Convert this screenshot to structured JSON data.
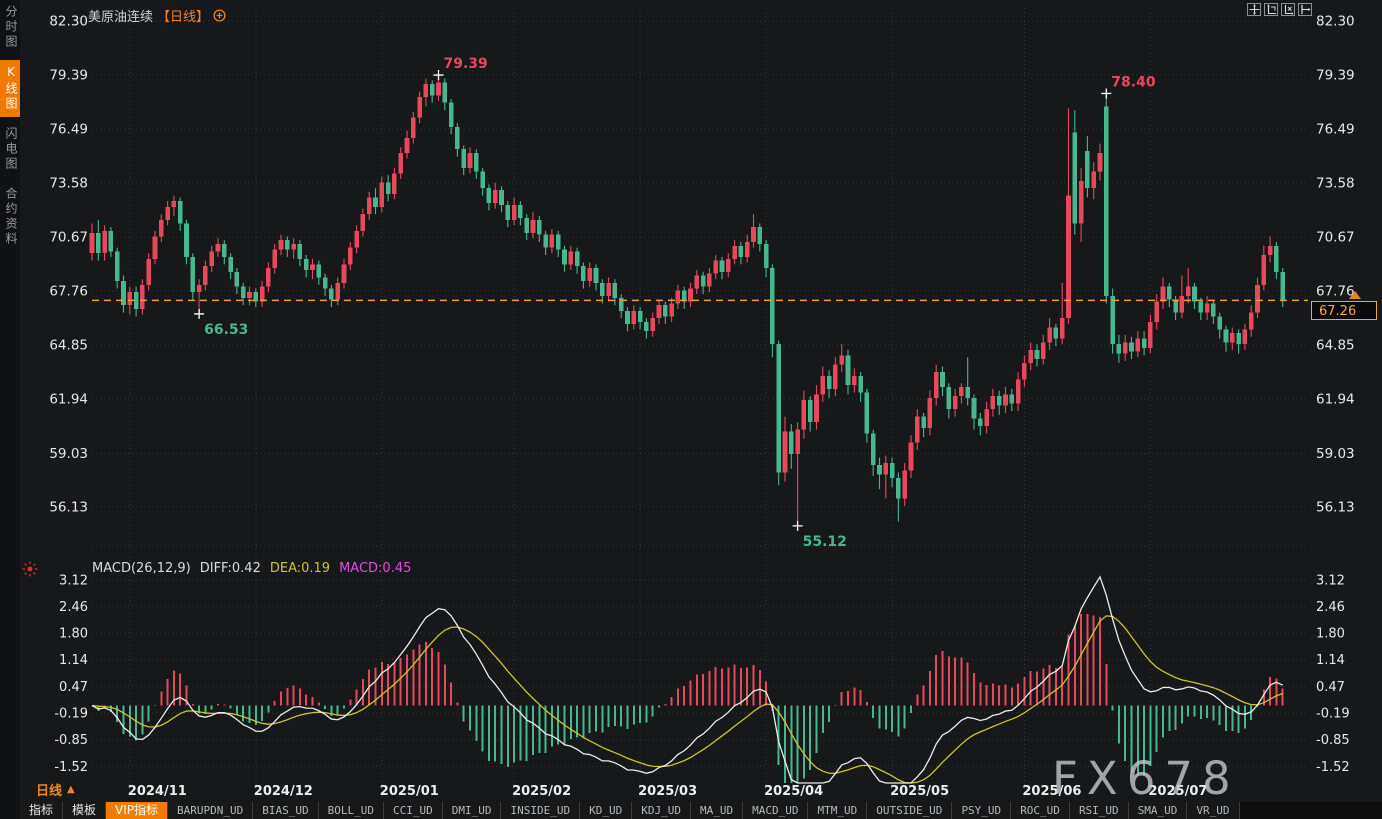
{
  "window": {
    "instrument": "美原油连续",
    "period_tag": "【日线】",
    "period_selector": "日线",
    "watermark": "FX678"
  },
  "sidebar": {
    "items": [
      {
        "label": "分时图",
        "active": false
      },
      {
        "label": "K线图",
        "active": true
      },
      {
        "label": "闪电图",
        "active": false
      },
      {
        "label": "合约资料",
        "active": false
      }
    ]
  },
  "toolbar": {
    "buttons": [
      "pan-move",
      "y-axis-scale",
      "x-axis-scale",
      "shift-right"
    ]
  },
  "macd_panel": {
    "title": "MACD(26,12,9)",
    "diff_text": "DIFF:0.42",
    "dea_text": "DEA:0.19",
    "macd_text": "MACD:0.45"
  },
  "current_price": "67.26",
  "bottom_tabs": [
    {
      "label": "指标",
      "style": "cn"
    },
    {
      "label": "模板",
      "style": "cn"
    },
    {
      "label": "VIP指标",
      "style": "vip"
    },
    {
      "label": "BARUPDN_UD",
      "style": "ud"
    },
    {
      "label": "BIAS_UD",
      "style": "ud"
    },
    {
      "label": "BOLL_UD",
      "style": "ud"
    },
    {
      "label": "CCI_UD",
      "style": "ud"
    },
    {
      "label": "DMI_UD",
      "style": "ud"
    },
    {
      "label": "INSIDE_UD",
      "style": "ud"
    },
    {
      "label": "KD_UD",
      "style": "ud"
    },
    {
      "label": "KDJ_UD",
      "style": "ud"
    },
    {
      "label": "MA_UD",
      "style": "ud"
    },
    {
      "label": "MACD_UD",
      "style": "ud"
    },
    {
      "label": "MTM_UD",
      "style": "ud"
    },
    {
      "label": "OUTSIDE_UD",
      "style": "ud"
    },
    {
      "label": "PSY_UD",
      "style": "ud"
    },
    {
      "label": "ROC_UD",
      "style": "ud"
    },
    {
      "label": "RSI_UD",
      "style": "ud"
    },
    {
      "label": "SMA_UD",
      "style": "ud"
    },
    {
      "label": "VR_UD",
      "style": "ud"
    }
  ],
  "chart_data": {
    "type": "candlestick",
    "title": "美原油连续 日线 (US crude oil continuous, daily)",
    "price_axis": [
      82.3,
      79.39,
      76.49,
      73.58,
      70.67,
      67.76,
      64.85,
      61.94,
      59.03,
      56.13
    ],
    "macd_axis": [
      3.12,
      2.46,
      1.8,
      1.14,
      0.47,
      -0.19,
      -0.85,
      -1.52
    ],
    "months": [
      {
        "index": 6,
        "label": "2024/11"
      },
      {
        "index": 26,
        "label": "2024/12"
      },
      {
        "index": 46,
        "label": "2025/01"
      },
      {
        "index": 67,
        "label": "2025/02"
      },
      {
        "index": 87,
        "label": "2025/03"
      },
      {
        "index": 107,
        "label": "2025/04"
      },
      {
        "index": 127,
        "label": "2025/05"
      },
      {
        "index": 148,
        "label": "2025/06"
      },
      {
        "index": 168,
        "label": "2025/07"
      }
    ],
    "markers": [
      {
        "label": "79.39",
        "index": 55,
        "price": 79.39,
        "kind": "high"
      },
      {
        "label": "66.53",
        "index": 17,
        "price": 66.53,
        "kind": "low"
      },
      {
        "label": "55.12",
        "index": 112,
        "price": 55.12,
        "kind": "low"
      },
      {
        "label": "78.40",
        "index": 161,
        "price": 78.4,
        "kind": "high"
      }
    ],
    "last_price": 67.26,
    "indicator": {
      "name": "MACD",
      "params": [
        26,
        12,
        9
      ],
      "diff": 0.42,
      "dea": 0.19,
      "macd": 0.45
    },
    "colors": {
      "up": "#e8485c",
      "down": "#45b88e",
      "accent_orange": "#f58220",
      "dea_yellow": "#cfc22f",
      "macd_magenta": "#e04fe0",
      "grid": "#34373b",
      "text": "#e6e8ea",
      "price_line": "#f29b38",
      "cross": "#ffffff"
    },
    "candles": [
      [
        69.8,
        71.4,
        69.4,
        70.9
      ],
      [
        70.9,
        71.6,
        69.4,
        69.8
      ],
      [
        69.8,
        71.3,
        69.4,
        71.0
      ],
      [
        71.0,
        71.2,
        69.6,
        69.9
      ],
      [
        69.9,
        70.1,
        67.9,
        68.3
      ],
      [
        68.3,
        68.6,
        66.6,
        67.0
      ],
      [
        67.0,
        68.0,
        66.5,
        67.7
      ],
      [
        67.7,
        68.0,
        66.4,
        66.8
      ],
      [
        66.8,
        68.4,
        66.5,
        68.1
      ],
      [
        68.1,
        69.8,
        67.8,
        69.5
      ],
      [
        69.5,
        71.0,
        69.2,
        70.7
      ],
      [
        70.7,
        71.9,
        70.4,
        71.6
      ],
      [
        71.6,
        72.6,
        71.3,
        72.3
      ],
      [
        72.3,
        72.9,
        71.8,
        72.6
      ],
      [
        72.6,
        72.8,
        71.0,
        71.4
      ],
      [
        71.4,
        71.6,
        69.2,
        69.6
      ],
      [
        69.6,
        69.8,
        67.3,
        67.7
      ],
      [
        67.7,
        68.4,
        66.53,
        68.1
      ],
      [
        68.1,
        69.4,
        67.8,
        69.1
      ],
      [
        69.1,
        70.2,
        68.8,
        69.9
      ],
      [
        69.9,
        70.6,
        69.6,
        70.3
      ],
      [
        70.3,
        70.5,
        69.2,
        69.6
      ],
      [
        69.6,
        69.8,
        68.4,
        68.8
      ],
      [
        68.8,
        69.0,
        67.6,
        68.0
      ],
      [
        68.0,
        68.2,
        67.0,
        67.4
      ],
      [
        67.4,
        68.0,
        67.0,
        67.7
      ],
      [
        67.7,
        67.9,
        66.9,
        67.2
      ],
      [
        67.2,
        68.3,
        66.9,
        68.0
      ],
      [
        68.0,
        69.3,
        67.7,
        69.0
      ],
      [
        69.0,
        70.3,
        68.7,
        70.0
      ],
      [
        70.0,
        70.8,
        69.7,
        70.5
      ],
      [
        70.5,
        70.7,
        69.6,
        70.0
      ],
      [
        70.0,
        70.6,
        69.5,
        70.3
      ],
      [
        70.3,
        70.5,
        69.1,
        69.5
      ],
      [
        69.5,
        69.7,
        68.5,
        68.9
      ],
      [
        68.9,
        69.5,
        68.4,
        69.2
      ],
      [
        69.2,
        69.4,
        68.1,
        68.5
      ],
      [
        68.5,
        68.7,
        67.5,
        67.9
      ],
      [
        67.9,
        68.1,
        66.9,
        67.3
      ],
      [
        67.3,
        68.5,
        67.0,
        68.2
      ],
      [
        68.2,
        69.5,
        67.9,
        69.2
      ],
      [
        69.2,
        70.4,
        68.9,
        70.1
      ],
      [
        70.1,
        71.3,
        69.8,
        71.0
      ],
      [
        71.0,
        72.2,
        70.7,
        71.9
      ],
      [
        71.9,
        73.1,
        71.6,
        72.8
      ],
      [
        72.8,
        73.3,
        71.9,
        72.3
      ],
      [
        72.3,
        73.9,
        72.0,
        73.6
      ],
      [
        73.6,
        74.0,
        72.6,
        73.0
      ],
      [
        73.0,
        74.4,
        72.7,
        74.1
      ],
      [
        74.1,
        75.5,
        73.8,
        75.2
      ],
      [
        75.2,
        76.4,
        74.9,
        76.0
      ],
      [
        76.0,
        77.4,
        75.7,
        77.1
      ],
      [
        77.1,
        78.5,
        76.8,
        78.2
      ],
      [
        78.2,
        79.2,
        77.7,
        78.9
      ],
      [
        78.9,
        79.1,
        77.9,
        78.3
      ],
      [
        78.3,
        79.39,
        78.0,
        79.0
      ],
      [
        79.0,
        79.2,
        77.5,
        77.9
      ],
      [
        77.9,
        78.1,
        76.2,
        76.6
      ],
      [
        76.6,
        76.8,
        75.0,
        75.4
      ],
      [
        75.4,
        75.6,
        74.0,
        74.4
      ],
      [
        74.4,
        75.5,
        74.1,
        75.2
      ],
      [
        75.2,
        75.4,
        73.8,
        74.2
      ],
      [
        74.2,
        74.4,
        72.9,
        73.3
      ],
      [
        73.3,
        73.5,
        72.1,
        72.5
      ],
      [
        72.5,
        73.6,
        72.2,
        73.2
      ],
      [
        73.2,
        73.4,
        72.0,
        72.4
      ],
      [
        72.4,
        72.6,
        71.2,
        71.6
      ],
      [
        71.6,
        72.8,
        71.3,
        72.4
      ],
      [
        72.4,
        72.6,
        71.3,
        71.7
      ],
      [
        71.7,
        71.9,
        70.5,
        70.9
      ],
      [
        70.9,
        72.0,
        70.6,
        71.6
      ],
      [
        71.6,
        71.8,
        70.4,
        70.8
      ],
      [
        70.8,
        71.0,
        69.7,
        70.1
      ],
      [
        70.1,
        71.1,
        69.8,
        70.8
      ],
      [
        70.8,
        71.0,
        69.6,
        70.0
      ],
      [
        70.0,
        70.2,
        68.8,
        69.2
      ],
      [
        69.2,
        70.2,
        68.9,
        69.9
      ],
      [
        69.9,
        70.1,
        68.7,
        69.1
      ],
      [
        69.1,
        69.3,
        67.9,
        68.3
      ],
      [
        68.3,
        69.3,
        68.0,
        69.0
      ],
      [
        69.0,
        69.2,
        67.8,
        68.2
      ],
      [
        68.2,
        68.4,
        67.1,
        67.5
      ],
      [
        67.5,
        68.5,
        67.2,
        68.2
      ],
      [
        68.2,
        68.4,
        67.0,
        67.4
      ],
      [
        67.4,
        67.6,
        66.3,
        66.7
      ],
      [
        66.7,
        66.9,
        65.6,
        66.0
      ],
      [
        66.0,
        67.0,
        65.7,
        66.7
      ],
      [
        66.7,
        66.9,
        65.7,
        66.1
      ],
      [
        66.1,
        66.3,
        65.2,
        65.6
      ],
      [
        65.6,
        66.6,
        65.3,
        66.3
      ],
      [
        66.3,
        67.3,
        66.0,
        67.0
      ],
      [
        67.0,
        67.2,
        66.0,
        66.4
      ],
      [
        66.4,
        67.4,
        66.1,
        67.1
      ],
      [
        67.1,
        68.1,
        66.8,
        67.8
      ],
      [
        67.8,
        68.0,
        66.8,
        67.2
      ],
      [
        67.2,
        68.2,
        66.9,
        67.9
      ],
      [
        67.9,
        68.9,
        67.6,
        68.6
      ],
      [
        68.6,
        68.8,
        67.6,
        68.0
      ],
      [
        68.0,
        69.0,
        67.7,
        68.7
      ],
      [
        68.7,
        69.7,
        68.4,
        69.4
      ],
      [
        69.4,
        69.6,
        68.4,
        68.8
      ],
      [
        68.8,
        69.8,
        68.5,
        69.5
      ],
      [
        69.5,
        70.5,
        69.2,
        70.2
      ],
      [
        70.2,
        70.4,
        69.2,
        69.6
      ],
      [
        69.6,
        70.8,
        69.3,
        70.4
      ],
      [
        70.4,
        71.9,
        70.1,
        71.2
      ],
      [
        71.2,
        71.4,
        69.9,
        70.3
      ],
      [
        70.3,
        70.5,
        68.5,
        69.0
      ],
      [
        69.0,
        69.2,
        64.2,
        64.9
      ],
      [
        64.9,
        65.1,
        57.3,
        58.0
      ],
      [
        58.0,
        61.0,
        57.5,
        60.2
      ],
      [
        60.2,
        60.6,
        58.2,
        59.0
      ],
      [
        59.0,
        60.7,
        55.12,
        60.3
      ],
      [
        60.3,
        62.4,
        59.8,
        61.9
      ],
      [
        61.9,
        62.1,
        60.2,
        60.7
      ],
      [
        60.7,
        62.7,
        60.3,
        62.2
      ],
      [
        62.2,
        63.7,
        61.8,
        63.2
      ],
      [
        63.2,
        63.5,
        62.0,
        62.5
      ],
      [
        62.5,
        64.2,
        62.1,
        63.8
      ],
      [
        63.8,
        64.9,
        63.4,
        64.3
      ],
      [
        64.3,
        64.6,
        62.2,
        62.7
      ],
      [
        62.7,
        63.6,
        62.3,
        63.2
      ],
      [
        63.2,
        63.4,
        61.8,
        62.3
      ],
      [
        62.3,
        62.5,
        59.6,
        60.1
      ],
      [
        60.1,
        60.3,
        57.8,
        58.4
      ],
      [
        58.4,
        58.8,
        57.1,
        57.9
      ],
      [
        57.9,
        58.9,
        56.6,
        58.5
      ],
      [
        58.5,
        58.8,
        57.2,
        57.7
      ],
      [
        57.7,
        58.0,
        55.35,
        56.6
      ],
      [
        56.6,
        58.5,
        56.2,
        58.1
      ],
      [
        58.1,
        60.0,
        57.7,
        59.6
      ],
      [
        59.6,
        61.4,
        59.2,
        61.0
      ],
      [
        61.0,
        61.2,
        59.9,
        60.4
      ],
      [
        60.4,
        62.4,
        60.0,
        62.0
      ],
      [
        62.0,
        63.8,
        61.6,
        63.4
      ],
      [
        63.4,
        63.7,
        62.1,
        62.6
      ],
      [
        62.6,
        62.8,
        60.9,
        61.4
      ],
      [
        61.4,
        62.5,
        61.0,
        62.1
      ],
      [
        62.1,
        62.8,
        61.7,
        62.6
      ],
      [
        62.6,
        64.2,
        61.6,
        62.0
      ],
      [
        62.0,
        62.2,
        60.3,
        60.9
      ],
      [
        60.9,
        61.2,
        60.0,
        60.5
      ],
      [
        60.5,
        61.8,
        60.1,
        61.4
      ],
      [
        61.4,
        62.5,
        61.0,
        62.1
      ],
      [
        62.1,
        62.4,
        61.1,
        61.6
      ],
      [
        61.6,
        62.6,
        61.2,
        62.2
      ],
      [
        62.2,
        62.5,
        61.3,
        61.7
      ],
      [
        61.7,
        63.4,
        61.3,
        63.0
      ],
      [
        63.0,
        64.3,
        62.6,
        63.9
      ],
      [
        63.9,
        65.0,
        63.5,
        64.6
      ],
      [
        64.6,
        64.9,
        63.7,
        64.1
      ],
      [
        64.1,
        65.4,
        63.8,
        65.0
      ],
      [
        65.0,
        66.3,
        64.6,
        65.8
      ],
      [
        65.8,
        66.0,
        64.8,
        65.2
      ],
      [
        65.2,
        68.2,
        64.9,
        66.3
      ],
      [
        66.3,
        77.6,
        66.0,
        72.9
      ],
      [
        76.3,
        77.5,
        70.8,
        71.4
      ],
      [
        71.4,
        74.4,
        70.4,
        73.7
      ],
      [
        75.3,
        76.1,
        72.8,
        73.3
      ],
      [
        73.3,
        74.7,
        72.7,
        74.2
      ],
      [
        74.2,
        75.7,
        73.7,
        75.2
      ],
      [
        77.7,
        78.4,
        67.1,
        67.5
      ],
      [
        67.5,
        67.9,
        64.4,
        64.9
      ],
      [
        64.9,
        65.4,
        63.9,
        64.4
      ],
      [
        64.4,
        65.4,
        64.0,
        65.0
      ],
      [
        65.0,
        65.3,
        64.1,
        64.5
      ],
      [
        64.5,
        65.6,
        64.2,
        65.2
      ],
      [
        65.2,
        65.6,
        64.3,
        64.7
      ],
      [
        64.7,
        66.5,
        64.4,
        66.1
      ],
      [
        66.1,
        67.6,
        65.7,
        67.2
      ],
      [
        67.2,
        68.5,
        66.8,
        68.0
      ],
      [
        68.0,
        68.2,
        66.9,
        67.3
      ],
      [
        67.3,
        67.5,
        66.2,
        66.6
      ],
      [
        66.6,
        68.6,
        66.3,
        67.5
      ],
      [
        67.5,
        69.0,
        67.1,
        68.0
      ],
      [
        68.0,
        68.2,
        66.8,
        67.2
      ],
      [
        67.2,
        67.4,
        66.2,
        66.6
      ],
      [
        66.6,
        67.5,
        66.2,
        67.1
      ],
      [
        67.1,
        67.3,
        66.0,
        66.4
      ],
      [
        66.4,
        66.6,
        65.2,
        65.7
      ],
      [
        65.7,
        65.9,
        64.5,
        65.0
      ],
      [
        65.0,
        65.8,
        64.6,
        65.5
      ],
      [
        65.5,
        65.7,
        64.4,
        64.9
      ],
      [
        64.9,
        66.0,
        64.6,
        65.7
      ],
      [
        65.7,
        67.0,
        65.3,
        66.6
      ],
      [
        66.6,
        68.5,
        66.3,
        68.1
      ],
      [
        68.1,
        70.2,
        67.8,
        69.7
      ],
      [
        69.7,
        70.7,
        69.3,
        70.2
      ],
      [
        70.2,
        70.4,
        68.4,
        68.8
      ],
      [
        68.8,
        69.0,
        66.9,
        67.26
      ]
    ]
  }
}
